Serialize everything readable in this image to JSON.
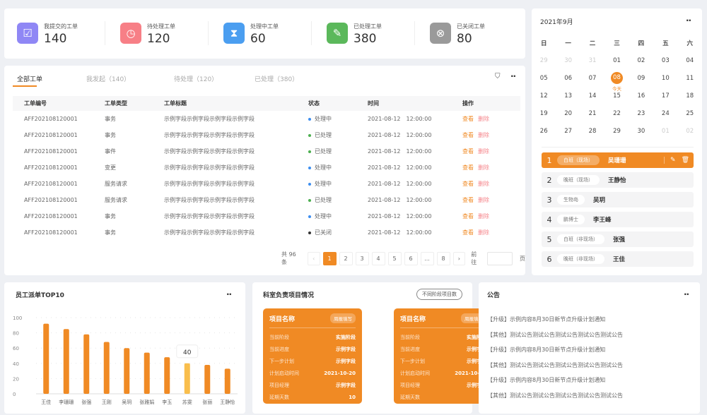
{
  "stats": [
    {
      "label": "我提交的工单",
      "value": "140",
      "color": "#8f87f5",
      "icon": "inbox-check-icon"
    },
    {
      "label": "待处理工单",
      "value": "120",
      "color": "#f77f86",
      "icon": "clock-icon"
    },
    {
      "label": "处理中工单",
      "value": "60",
      "color": "#4b9ef0",
      "icon": "hourglass-icon"
    },
    {
      "label": "已处理工单",
      "value": "380",
      "color": "#5bb85b",
      "icon": "document-check-icon"
    },
    {
      "label": "已关闭工单",
      "value": "80",
      "color": "#9a9a9a",
      "icon": "close-circle-icon"
    }
  ],
  "tabs": [
    "全部工单",
    "我发起（140）",
    "待处理（120）",
    "已处理（380）"
  ],
  "table": {
    "headers": [
      "工单编号",
      "工单类型",
      "工单标题",
      "状态",
      "时间",
      "操作"
    ],
    "rows": [
      {
        "id": "AFF202108120001",
        "type": "事务",
        "title": "示例字段示例字段示例字段示例字段",
        "status": "处理中",
        "time": "2021-08-12　12:00:00"
      },
      {
        "id": "AFF202108120001",
        "type": "事务",
        "title": "示例字段示例字段示例字段示例字段",
        "status": "已处理",
        "time": "2021-08-12　12:00:00"
      },
      {
        "id": "AFF202108120001",
        "type": "事件",
        "title": "示例字段示例字段示例字段示例字段",
        "status": "已处理",
        "time": "2021-08-12　12:00:00"
      },
      {
        "id": "AFF202108120001",
        "type": "变更",
        "title": "示例字段示例字段示例字段示例字段",
        "status": "处理中",
        "time": "2021-08-12　12:00:00"
      },
      {
        "id": "AFF202108120001",
        "type": "服务请求",
        "title": "示例字段示例字段示例字段示例字段",
        "status": "处理中",
        "time": "2021-08-12　12:00:00"
      },
      {
        "id": "AFF202108120001",
        "type": "服务请求",
        "title": "示例字段示例字段示例字段示例字段",
        "status": "已处理",
        "time": "2021-08-12　12:00:00"
      },
      {
        "id": "AFF202108120001",
        "type": "事务",
        "title": "示例字段示例字段示例字段示例字段",
        "status": "处理中",
        "time": "2021-08-12　12:00:00"
      },
      {
        "id": "AFF202108120001",
        "type": "事务",
        "title": "示例字段示例字段示例字段示例字段",
        "status": "已关闭",
        "time": "2021-08-12　12:00:00"
      }
    ],
    "view_label": "查看",
    "delete_label": "删除",
    "status_colors": {
      "处理中": "#3d8ef0",
      "已处理": "#4caf50",
      "已关闭": "#333333"
    }
  },
  "pagination": {
    "total": "共 96 条",
    "pages": [
      "1",
      "2",
      "3",
      "4",
      "5",
      "6",
      "...",
      "8"
    ],
    "current": "1",
    "goto": "前往",
    "page_unit": "页",
    "goto_value": ""
  },
  "calendar": {
    "title": "2021年9月",
    "weekdays": [
      "日",
      "一",
      "二",
      "三",
      "四",
      "五",
      "六"
    ],
    "weeks": [
      [
        "29",
        "30",
        "31",
        "01",
        "02",
        "03",
        "04"
      ],
      [
        "05",
        "06",
        "07",
        "08",
        "09",
        "10",
        "11"
      ],
      [
        "12",
        "13",
        "14",
        "15",
        "16",
        "17",
        "18"
      ],
      [
        "19",
        "20",
        "21",
        "22",
        "23",
        "24",
        "25"
      ],
      [
        "26",
        "27",
        "28",
        "29",
        "30",
        "01",
        "02"
      ]
    ],
    "today": "08",
    "today_label": "今天"
  },
  "shifts": [
    {
      "n": "1",
      "tag": "白班（现场）",
      "name": "吴珊珊"
    },
    {
      "n": "2",
      "tag": "晚班（现场）",
      "name": "王静怡"
    },
    {
      "n": "3",
      "tag": "生物岛",
      "name": "吴玥"
    },
    {
      "n": "4",
      "tag": "鹏博士",
      "name": "李王峰"
    },
    {
      "n": "5",
      "tag": "白班（非现场）",
      "name": "张强"
    },
    {
      "n": "6",
      "tag": "晚班（非现场）",
      "name": "王佳"
    }
  ],
  "chart_data": {
    "type": "bar",
    "title": "员工派单TOP10",
    "categories": [
      "王佳",
      "李珊珊",
      "张强",
      "王刚",
      "吴玥",
      "张雅娟",
      "李玉",
      "苏雯",
      "张丽",
      "王静怡"
    ],
    "values": [
      92,
      85,
      78,
      68,
      60,
      54,
      48,
      40,
      38,
      33
    ],
    "ylim": [
      0,
      100
    ],
    "yticks": [
      "0",
      "20",
      "40",
      "60",
      "80",
      "100"
    ],
    "grid": true,
    "highlight": "苏雯",
    "tooltip": "40",
    "colors": {
      "bar": "#f08a24",
      "highlight": "#f9be4c"
    }
  },
  "projects": {
    "title": "科室负责项目情况",
    "button": "不同阶段项目数",
    "cards": [
      {
        "name": "项目名称",
        "badge": "周报填写",
        "rows": [
          [
            "当前阶段",
            "实施阶段"
          ],
          [
            "当前进度",
            "示例字段"
          ],
          [
            "下一步计划",
            "示例字段"
          ],
          [
            "计划启动时间",
            "2021-10-20"
          ],
          [
            "项目经理",
            "示例字段"
          ],
          [
            "延期天数",
            "10"
          ]
        ]
      },
      {
        "name": "项目名称",
        "badge": "周报填写",
        "rows": [
          [
            "当前阶段",
            "实施阶段"
          ],
          [
            "当前进度",
            "示例字段"
          ],
          [
            "下一步计划",
            "示例字段"
          ],
          [
            "计划启动时间",
            "2021-10-20"
          ],
          [
            "项目经理",
            "示例字段"
          ],
          [
            "延期天数",
            "10"
          ]
        ]
      }
    ]
  },
  "notices": {
    "title": "公告",
    "items": [
      "【升级】示例内容8月30日新节点升级计划通知",
      "【其他】测试公告测试公告测试公告测试公告测试公告",
      "【升级】示例内容8月30日新节点升级计划通知",
      "【其他】测试公告测试公告测试公告测试公告测试公告",
      "【升级】示例内容8月30日新节点升级计划通知",
      "【其他】测试公告测试公告测试公告测试公告测试公告"
    ]
  }
}
